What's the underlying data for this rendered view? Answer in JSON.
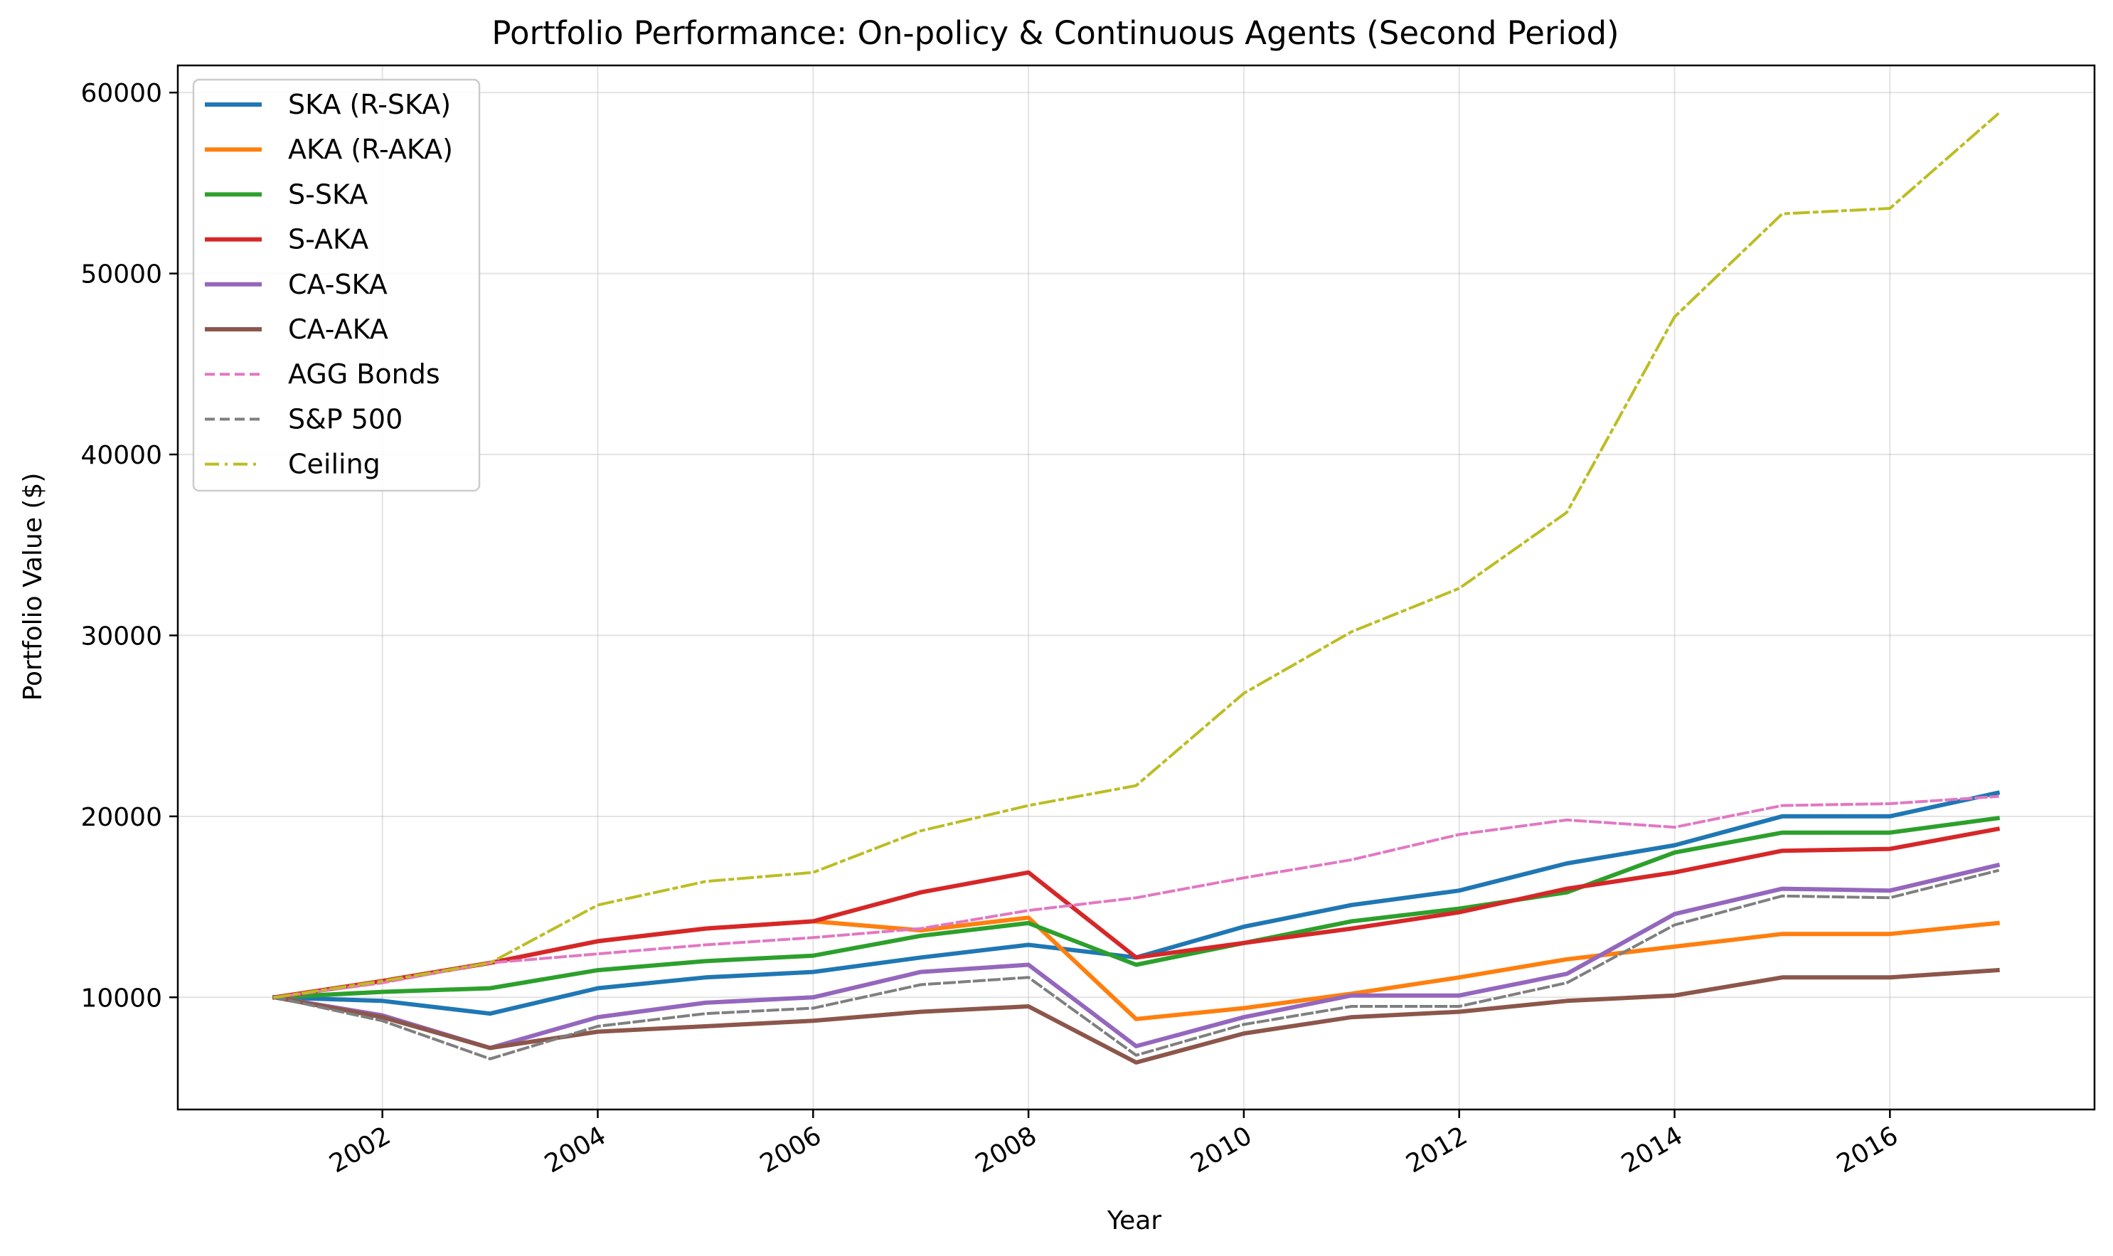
{
  "chart_data": {
    "type": "line",
    "title": "Portfolio Performance: On-policy & Continuous Agents (Second Period)",
    "xlabel": "Year",
    "ylabel": "Portfolio Value ($)",
    "xlim": [
      2000.1,
      2017.9
    ],
    "ylim": [
      3800,
      61500
    ],
    "x_ticks": [
      2002,
      2004,
      2006,
      2008,
      2010,
      2012,
      2014,
      2016
    ],
    "y_ticks": [
      10000,
      20000,
      30000,
      40000,
      50000,
      60000
    ],
    "grid": true,
    "legend_position": "upper left",
    "x": [
      2001,
      2002,
      2003,
      2004,
      2005,
      2006,
      2007,
      2008,
      2009,
      2010,
      2011,
      2012,
      2013,
      2014,
      2015,
      2016,
      2017
    ],
    "series": [
      {
        "name": "SKA (R-SKA)",
        "color": "#1f77b4",
        "style": "solid",
        "values": [
          10000,
          9800,
          9100,
          10500,
          11100,
          11400,
          12200,
          12900,
          12200,
          13900,
          15100,
          15900,
          17400,
          18400,
          20000,
          20000,
          21300
        ]
      },
      {
        "name": "AKA (R-AKA)",
        "color": "#ff7f0e",
        "style": "solid",
        "values": [
          10000,
          10900,
          11900,
          13100,
          13800,
          14200,
          13700,
          14400,
          8800,
          9400,
          10200,
          11100,
          12100,
          12800,
          13500,
          13500,
          14100
        ]
      },
      {
        "name": "S-SKA",
        "color": "#2ca02c",
        "style": "solid",
        "values": [
          10000,
          10300,
          10500,
          11500,
          12000,
          12300,
          13400,
          14100,
          11800,
          13000,
          14200,
          14900,
          15800,
          18000,
          19100,
          19100,
          19900
        ]
      },
      {
        "name": "S-AKA",
        "color": "#d62728",
        "style": "solid",
        "values": [
          10000,
          10900,
          11900,
          13100,
          13800,
          14200,
          15800,
          16900,
          12200,
          13000,
          13800,
          14700,
          16000,
          16900,
          18100,
          18200,
          19300
        ]
      },
      {
        "name": "CA-SKA",
        "color": "#9467bd",
        "style": "solid",
        "values": [
          10000,
          9000,
          7200,
          8900,
          9700,
          10000,
          11400,
          11800,
          7300,
          8900,
          10100,
          10100,
          11300,
          14600,
          16000,
          15900,
          17300
        ]
      },
      {
        "name": "CA-AKA",
        "color": "#8c564b",
        "style": "solid",
        "values": [
          10000,
          8900,
          7200,
          8100,
          8400,
          8700,
          9200,
          9500,
          6400,
          8000,
          8900,
          9200,
          9800,
          10100,
          11100,
          11100,
          11500
        ]
      },
      {
        "name": "AGG Bonds",
        "color": "#e377c2",
        "style": "dashed",
        "values": [
          10000,
          10800,
          11900,
          12400,
          12900,
          13300,
          13800,
          14800,
          15500,
          16600,
          17600,
          19000,
          19800,
          19400,
          20600,
          20700,
          21100
        ]
      },
      {
        "name": "S&P 500",
        "color": "#7f7f7f",
        "style": "dashed",
        "values": [
          10000,
          8700,
          6600,
          8400,
          9100,
          9400,
          10700,
          11100,
          6800,
          8500,
          9500,
          9500,
          10800,
          14000,
          15600,
          15500,
          17000
        ]
      },
      {
        "name": "Ceiling",
        "color": "#bcbd22",
        "style": "dashdot",
        "values": [
          10000,
          10900,
          11900,
          15100,
          16400,
          16900,
          19200,
          20600,
          21700,
          26800,
          30200,
          32600,
          36800,
          47600,
          53300,
          53600,
          58800
        ]
      }
    ]
  }
}
